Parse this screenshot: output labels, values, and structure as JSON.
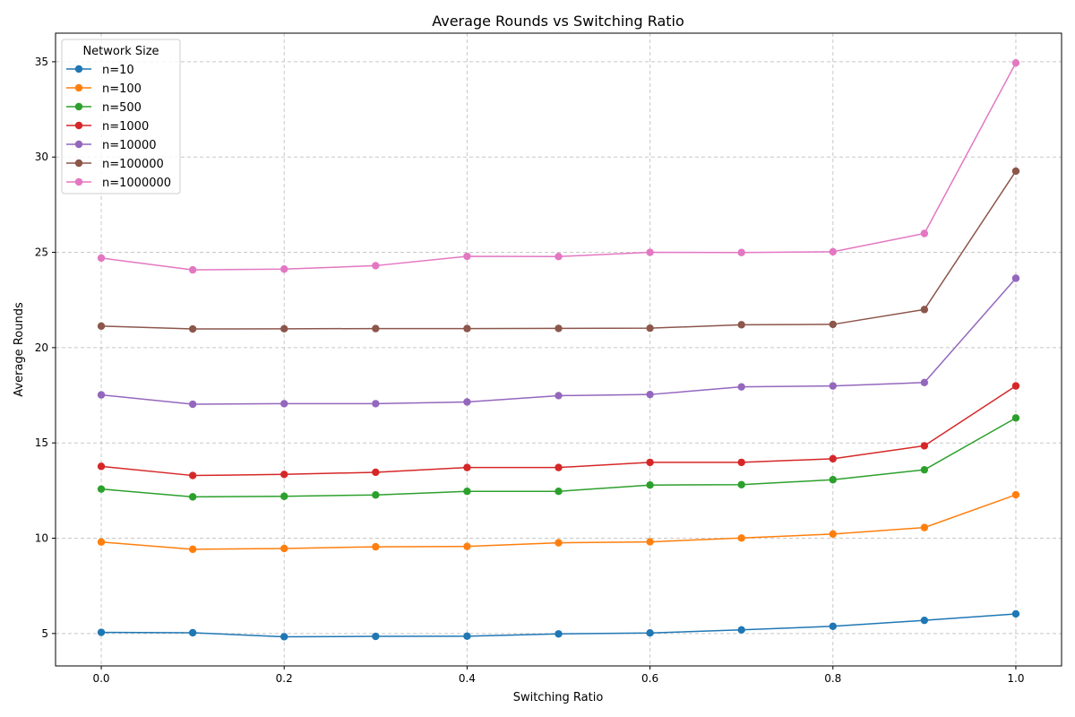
{
  "chart_data": {
    "type": "line",
    "title": "Average Rounds vs Switching Ratio",
    "xlabel": "Switching Ratio",
    "ylabel": "Average Rounds",
    "xlim": [
      -0.05,
      1.05
    ],
    "ylim": [
      3.3,
      36.5
    ],
    "x_ticks": [
      0.0,
      0.2,
      0.4,
      0.6,
      0.8,
      1.0
    ],
    "x_tick_labels": [
      "0.0",
      "0.2",
      "0.4",
      "0.6",
      "0.8",
      "1.0"
    ],
    "y_ticks": [
      5,
      10,
      15,
      20,
      25,
      30,
      35
    ],
    "y_tick_labels": [
      "5",
      "10",
      "15",
      "20",
      "25",
      "30",
      "35"
    ],
    "grid": true,
    "legend_title": "Network Size",
    "legend_position": "top-left",
    "x": [
      0.0,
      0.1,
      0.2,
      0.3,
      0.4,
      0.5,
      0.6,
      0.7,
      0.8,
      0.9,
      1.0
    ],
    "series": [
      {
        "name": "n=10",
        "color": "#1f77b4",
        "values": [
          5.06,
          5.04,
          4.83,
          4.85,
          4.86,
          4.98,
          5.03,
          5.19,
          5.38,
          5.69,
          6.03
        ]
      },
      {
        "name": "n=100",
        "color": "#ff7f0e",
        "values": [
          9.8,
          9.42,
          9.46,
          9.55,
          9.57,
          9.76,
          9.81,
          10.01,
          10.22,
          10.56,
          12.28
        ]
      },
      {
        "name": "n=500",
        "color": "#2ca02c",
        "values": [
          12.58,
          12.17,
          12.2,
          12.27,
          12.46,
          12.46,
          12.79,
          12.81,
          13.07,
          13.59,
          16.31
        ]
      },
      {
        "name": "n=1000",
        "color": "#d62728",
        "values": [
          13.77,
          13.29,
          13.35,
          13.46,
          13.71,
          13.71,
          13.98,
          13.98,
          14.17,
          14.85,
          17.99
        ]
      },
      {
        "name": "n=10000",
        "color": "#9467bd",
        "values": [
          17.52,
          17.03,
          17.06,
          17.06,
          17.15,
          17.48,
          17.54,
          17.94,
          17.99,
          18.17,
          23.64
        ]
      },
      {
        "name": "n=100000",
        "color": "#8c564b",
        "values": [
          21.13,
          20.98,
          20.99,
          21.0,
          21.0,
          21.01,
          21.02,
          21.2,
          21.22,
          22.0,
          29.26
        ]
      },
      {
        "name": "n=1000000",
        "color": "#e377c2",
        "values": [
          24.7,
          24.08,
          24.12,
          24.3,
          24.79,
          24.78,
          25.0,
          24.99,
          25.03,
          25.99,
          34.94
        ]
      }
    ]
  }
}
